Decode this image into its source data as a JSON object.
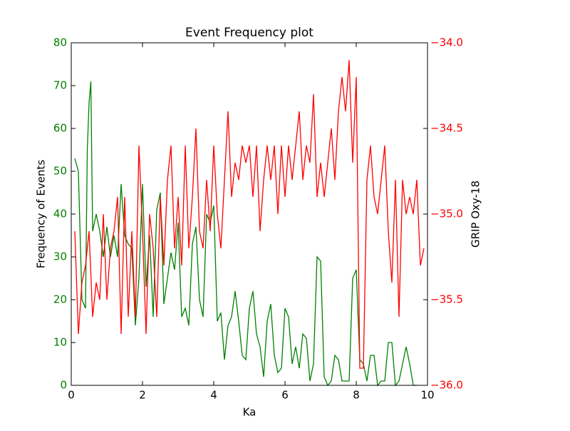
{
  "chart_data": {
    "type": "line",
    "title": "Event Frequency plot",
    "x_label": "Ka",
    "y_label": "Frequency of Events",
    "y2_label": "GRIP Oxy-18",
    "xlim": [
      0,
      10
    ],
    "xticks": [
      0,
      2,
      4,
      6,
      8,
      10
    ],
    "ylim": [
      0,
      80
    ],
    "yticks": [
      0,
      10,
      20,
      30,
      40,
      50,
      60,
      70,
      80
    ],
    "y2lim": [
      -36,
      -34
    ],
    "y2ticks": [
      {
        "value": -36,
        "label": "−36.0"
      },
      {
        "value": -35.5,
        "label": "−35.5"
      },
      {
        "value": -35,
        "label": "−35.0"
      },
      {
        "value": -34.5,
        "label": "−34.5"
      },
      {
        "value": -34,
        "label": "−34.0"
      }
    ],
    "y_color": "#008000",
    "y2_color": "#ff0000",
    "series": [
      {
        "name": "Frequency of Events",
        "color": "#008000",
        "x": [
          0.1,
          0.2,
          0.3,
          0.4,
          0.45,
          0.5,
          0.55,
          0.6,
          0.7,
          0.8,
          0.9,
          1.0,
          1.1,
          1.2,
          1.3,
          1.4,
          1.5,
          1.6,
          1.7,
          1.8,
          1.9,
          2.0,
          2.1,
          2.2,
          2.3,
          2.4,
          2.5,
          2.6,
          2.7,
          2.8,
          2.9,
          3.0,
          3.1,
          3.2,
          3.3,
          3.4,
          3.5,
          3.6,
          3.7,
          3.8,
          3.9,
          4.0,
          4.1,
          4.2,
          4.3,
          4.4,
          4.5,
          4.6,
          4.7,
          4.8,
          4.9,
          5.0,
          5.1,
          5.2,
          5.3,
          5.4,
          5.5,
          5.6,
          5.7,
          5.8,
          5.9,
          6.0,
          6.1,
          6.2,
          6.3,
          6.4,
          6.5,
          6.6,
          6.7,
          6.8,
          6.9,
          7.0,
          7.1,
          7.2,
          7.3,
          7.4,
          7.5,
          7.6,
          7.7,
          7.8,
          7.9,
          8.0,
          8.1,
          8.2,
          8.3,
          8.4,
          8.5,
          8.6,
          8.7,
          8.8,
          8.9,
          9.0,
          9.1,
          9.2,
          9.3,
          9.4,
          9.5,
          9.6,
          9.7
        ],
        "values": [
          53,
          50,
          20,
          18,
          55,
          66,
          71,
          36,
          40,
          36,
          30,
          37,
          30,
          35,
          30,
          47,
          35,
          33,
          32,
          14,
          25,
          47,
          23,
          35,
          16,
          41,
          45,
          19,
          25,
          31,
          27,
          38,
          16,
          18,
          14,
          33,
          37,
          20,
          16,
          40,
          38,
          42,
          15,
          17,
          6,
          14,
          16,
          22,
          15,
          7,
          6,
          18,
          22,
          12,
          9,
          2,
          15,
          19,
          7,
          3,
          4,
          18,
          16,
          5,
          9,
          4,
          12,
          11,
          1,
          5,
          30,
          29,
          2,
          0,
          1,
          7,
          6,
          1,
          1,
          1,
          25,
          27,
          6,
          5,
          1,
          7,
          7,
          0,
          1,
          1,
          10,
          10,
          0,
          1,
          5,
          9,
          5,
          0,
          0
        ]
      },
      {
        "name": "GRIP Oxy-18",
        "color": "#ff0000",
        "axis": "y2",
        "x": [
          0.1,
          0.2,
          0.3,
          0.4,
          0.5,
          0.6,
          0.7,
          0.8,
          0.9,
          1.0,
          1.1,
          1.2,
          1.3,
          1.4,
          1.5,
          1.6,
          1.7,
          1.8,
          1.9,
          2.0,
          2.1,
          2.2,
          2.3,
          2.4,
          2.5,
          2.6,
          2.7,
          2.8,
          2.9,
          3.0,
          3.1,
          3.2,
          3.3,
          3.4,
          3.5,
          3.6,
          3.7,
          3.8,
          3.9,
          4.0,
          4.1,
          4.2,
          4.3,
          4.4,
          4.5,
          4.6,
          4.7,
          4.8,
          4.9,
          5.0,
          5.1,
          5.2,
          5.3,
          5.4,
          5.5,
          5.6,
          5.7,
          5.8,
          5.9,
          6.0,
          6.1,
          6.2,
          6.3,
          6.4,
          6.5,
          6.6,
          6.7,
          6.8,
          6.9,
          7.0,
          7.1,
          7.2,
          7.3,
          7.4,
          7.5,
          7.6,
          7.7,
          7.8,
          7.9,
          8.0,
          8.1,
          8.2,
          8.3,
          8.4,
          8.5,
          8.6,
          8.7,
          8.8,
          8.9,
          9.0,
          9.1,
          9.2,
          9.3,
          9.4,
          9.5,
          9.6,
          9.7,
          9.8,
          9.9
        ],
        "values": [
          -35.1,
          -35.7,
          -35.4,
          -35.3,
          -35.1,
          -35.6,
          -35.4,
          -35.5,
          -35.0,
          -35.5,
          -35.2,
          -35.1,
          -34.9,
          -35.7,
          -34.9,
          -35.6,
          -35.1,
          -35.6,
          -34.6,
          -35.1,
          -35.7,
          -35.0,
          -35.2,
          -35.6,
          -34.9,
          -35.3,
          -34.8,
          -34.6,
          -35.2,
          -34.9,
          -35.3,
          -34.6,
          -35.2,
          -34.9,
          -34.5,
          -35.1,
          -35.2,
          -34.8,
          -35.1,
          -34.6,
          -35.0,
          -35.2,
          -34.8,
          -34.4,
          -34.9,
          -34.7,
          -34.8,
          -34.6,
          -34.7,
          -34.6,
          -34.9,
          -34.6,
          -35.1,
          -34.8,
          -34.6,
          -34.8,
          -34.6,
          -35.0,
          -34.6,
          -34.9,
          -34.6,
          -34.8,
          -34.6,
          -34.4,
          -34.8,
          -34.6,
          -34.7,
          -34.3,
          -34.9,
          -34.7,
          -34.9,
          -34.7,
          -34.5,
          -34.8,
          -34.4,
          -34.2,
          -34.4,
          -34.1,
          -34.7,
          -34.2,
          -35.9,
          -35.9,
          -34.8,
          -34.6,
          -34.9,
          -35.0,
          -34.8,
          -34.6,
          -35.1,
          -35.4,
          -34.8,
          -35.6,
          -34.8,
          -35.0,
          -34.9,
          -35.0,
          -34.8,
          -35.3,
          -35.2
        ]
      }
    ]
  }
}
